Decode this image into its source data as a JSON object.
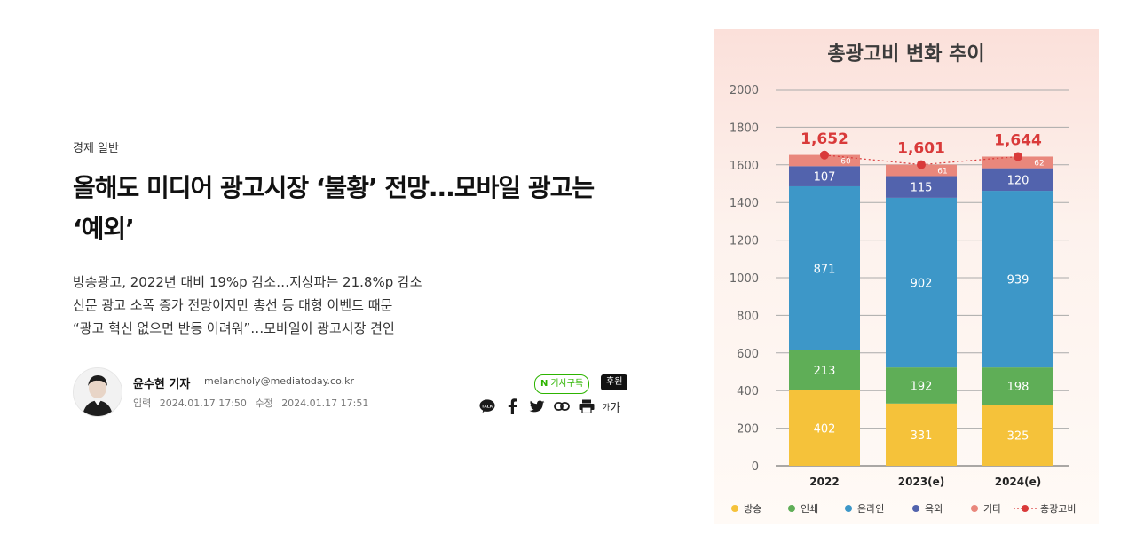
{
  "article": {
    "category": "경제 일반",
    "headline_line1": "올해도 미디어 광고시장 ‘불황’ 전망...모바일 광고는",
    "headline_line2": "‘예외’",
    "summary": [
      "방송광고, 2022년 대비 19%p 감소…지상파는 21.8%p 감소",
      "신문 광고 소폭 증가 전망이지만 총선 등 대형 이벤트 때문",
      "“광고 혁신 없으면 반등 어려워”…모바일이 광고시장 견인"
    ]
  },
  "author": {
    "name": "윤수현 기자",
    "email": "melancholy@mediatoday.co.kr",
    "published_label": "입력",
    "published": "2024.01.17 17:50",
    "modified_label": "수정",
    "modified": "2024.01.17 17:51"
  },
  "actions": {
    "subscribe_label": "기사구독",
    "subscribe_icon": "N",
    "sponsor_label": "후원",
    "kakao_label": "TALK",
    "font_label_small": "가",
    "font_label_large": "가",
    "icons": [
      "kakaotalk-icon",
      "facebook-icon",
      "twitter-icon",
      "link-icon",
      "print-icon",
      "font-size-icon"
    ]
  },
  "chart_data": {
    "type": "bar",
    "stacked": true,
    "title": "총광고비 변화 추이",
    "categories": [
      "2022",
      "2023(e)",
      "2024(e)"
    ],
    "ylim": [
      0,
      2000
    ],
    "yticks": [
      "0",
      "200",
      "400",
      "600",
      "800",
      "1000",
      "1200",
      "1400",
      "1600",
      "1800",
      "2000"
    ],
    "grid": true,
    "legend_position": "bottom",
    "series": [
      {
        "name": "방송",
        "values": [
          402,
          331,
          325
        ],
        "color": "#f5c23a"
      },
      {
        "name": "인쇄",
        "values": [
          213,
          192,
          198
        ],
        "color": "#5fae57"
      },
      {
        "name": "온라인",
        "values": [
          871,
          902,
          939
        ],
        "color": "#3d97c8"
      },
      {
        "name": "옥외",
        "values": [
          107,
          115,
          120
        ],
        "color": "#5263ad"
      },
      {
        "name": "기타",
        "values": [
          60,
          61,
          62
        ],
        "color": "#e9877c"
      }
    ],
    "total_line": {
      "name": "총광고비",
      "values": [
        1652,
        1601,
        1644
      ],
      "labels": [
        "1,652",
        "1,601",
        "1,644"
      ],
      "color": "#d93a3a"
    }
  }
}
